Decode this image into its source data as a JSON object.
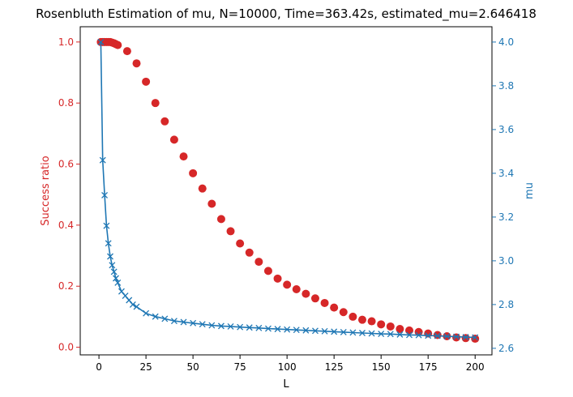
{
  "chart_data": {
    "type": "scatter",
    "title": "Rosenbluth Estimation of mu, N=10000, Time=363.42s, estimated_mu=2.646418",
    "xlabel": "L",
    "ylabel_left": "Success ratio",
    "ylabel_right": "mu",
    "xlim": [
      -9.95,
      208.95
    ],
    "ylim_left": [
      -0.025,
      1.05
    ],
    "ylim_right": [
      2.57,
      4.07
    ],
    "x_ticks": [
      0,
      25,
      50,
      75,
      100,
      125,
      150,
      175,
      200
    ],
    "y_ticks_left": [
      0.0,
      0.2,
      0.4,
      0.6,
      0.8,
      1.0
    ],
    "y_ticks_right": [
      2.6,
      2.8,
      3.0,
      3.2,
      3.4,
      3.6,
      3.8,
      4.0
    ],
    "grid": false,
    "colors": {
      "left": "#d62728",
      "right": "#1f77b4"
    },
    "series": [
      {
        "axis": "left",
        "marker": "circle",
        "x": [
          1,
          2,
          3,
          4,
          5,
          6,
          7,
          8,
          9,
          10,
          15,
          20,
          25,
          30,
          35,
          40,
          45,
          50,
          55,
          60,
          65,
          70,
          75,
          80,
          85,
          90,
          95,
          100,
          105,
          110,
          115,
          120,
          125,
          130,
          135,
          140,
          145,
          150,
          155,
          160,
          165,
          170,
          175,
          180,
          185,
          190,
          195,
          200
        ],
        "values": [
          1.0,
          1.0,
          1.0,
          1.0,
          1.0,
          1.0,
          0.998,
          0.996,
          0.993,
          0.99,
          0.97,
          0.93,
          0.87,
          0.8,
          0.74,
          0.68,
          0.625,
          0.57,
          0.52,
          0.47,
          0.42,
          0.38,
          0.34,
          0.31,
          0.28,
          0.25,
          0.225,
          0.205,
          0.19,
          0.175,
          0.16,
          0.145,
          0.13,
          0.115,
          0.1,
          0.09,
          0.085,
          0.075,
          0.068,
          0.06,
          0.055,
          0.05,
          0.045,
          0.04,
          0.036,
          0.032,
          0.03,
          0.028
        ]
      },
      {
        "axis": "right",
        "marker": "x",
        "x": [
          1,
          2,
          3,
          4,
          5,
          6,
          7,
          8,
          9,
          10,
          12,
          14,
          16,
          18,
          20,
          25,
          30,
          35,
          40,
          45,
          50,
          55,
          60,
          65,
          70,
          75,
          80,
          85,
          90,
          95,
          100,
          105,
          110,
          115,
          120,
          125,
          130,
          135,
          140,
          145,
          150,
          155,
          160,
          165,
          170,
          175,
          180,
          185,
          190,
          195,
          200
        ],
        "values": [
          4.0,
          3.46,
          3.3,
          3.16,
          3.08,
          3.02,
          2.98,
          2.95,
          2.92,
          2.9,
          2.86,
          2.84,
          2.82,
          2.8,
          2.79,
          2.76,
          2.745,
          2.735,
          2.725,
          2.72,
          2.715,
          2.71,
          2.705,
          2.702,
          2.7,
          2.697,
          2.695,
          2.693,
          2.69,
          2.688,
          2.686,
          2.684,
          2.682,
          2.68,
          2.678,
          2.676,
          2.674,
          2.672,
          2.67,
          2.668,
          2.666,
          2.665,
          2.663,
          2.661,
          2.66,
          2.658,
          2.657,
          2.655,
          2.653,
          2.651,
          2.65
        ]
      }
    ]
  }
}
